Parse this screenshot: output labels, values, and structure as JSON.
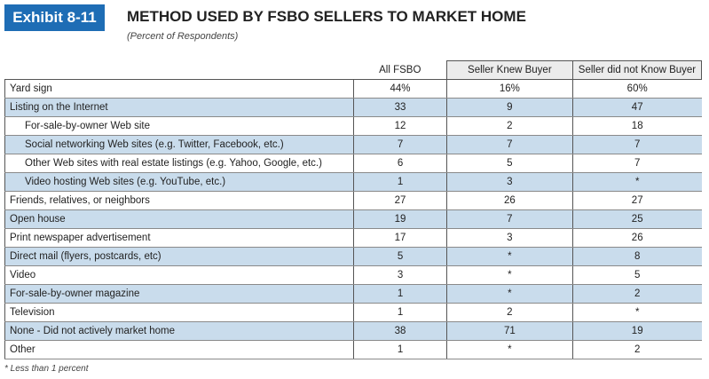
{
  "header": {
    "badge": "Exhibit 8-11",
    "title": "METHOD USED BY FSBO SELLERS TO MARKET HOME",
    "subtitle": "(Percent of Respondents)"
  },
  "table": {
    "columns": [
      "All FSBO",
      "Seller Knew Buyer",
      "Seller did not Know Buyer"
    ],
    "rows": [
      {
        "cells": [
          "Yard sign",
          "44%",
          "16%",
          "60%"
        ]
      },
      {
        "cells": [
          "Listing on the Internet",
          "33",
          "9",
          "47"
        ],
        "children": [
          [
            "For-sale-by-owner Web site",
            "12",
            "2",
            "18"
          ],
          [
            "Social networking Web sites (e.g. Twitter, Facebook, etc.)",
            "7",
            "7",
            "7"
          ],
          [
            "Other Web sites with real estate listings (e.g. Yahoo, Google, etc.)",
            "6",
            "5",
            "7"
          ],
          [
            "Video hosting Web sites (e.g. YouTube, etc.)",
            "1",
            "3",
            "*"
          ]
        ]
      },
      {
        "cells": [
          "Friends, relatives, or neighbors",
          "27",
          "26",
          "27"
        ]
      },
      {
        "cells": [
          "Open house",
          "19",
          "7",
          "25"
        ]
      },
      {
        "cells": [
          "Print newspaper advertisement",
          "17",
          "3",
          "26"
        ]
      },
      {
        "cells": [
          "Direct mail (flyers, postcards, etc)",
          "5",
          "*",
          "8"
        ]
      },
      {
        "cells": [
          "Video",
          "3",
          "*",
          "5"
        ]
      },
      {
        "cells": [
          "For-sale-by-owner magazine",
          "1",
          "*",
          "2"
        ]
      },
      {
        "cells": [
          "Television",
          "1",
          "2",
          "*"
        ]
      },
      {
        "cells": [
          "None - Did not actively market home",
          "38",
          "71",
          "19"
        ]
      },
      {
        "cells": [
          "Other",
          "1",
          "*",
          "2"
        ]
      }
    ]
  },
  "footnote": "* Less than 1 percent"
}
